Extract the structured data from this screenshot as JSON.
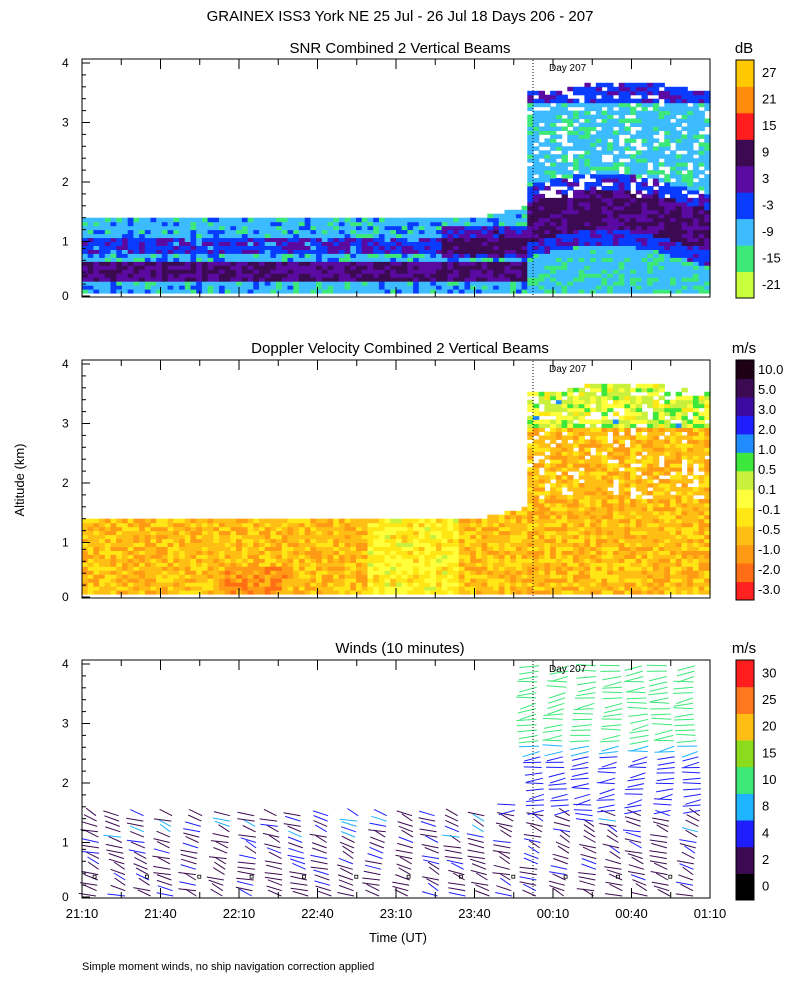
{
  "page_title": "GRAINEX ISS3 York NE  25 Jul - 26 Jul 18 Days 206 - 207",
  "ylabel": "Altitude (km)",
  "xlabel": "Time (UT)",
  "footnote": "Simple moment winds, no ship navigation correction applied",
  "day_marker": "Day 207",
  "colors": {
    "snr": [
      "#c8ff3c",
      "#3ce878",
      "#3cbcff",
      "#0a3cff",
      "#5a0aa0",
      "#3c0a50",
      "#ff1e1e",
      "#ff8c0a",
      "#ffc800"
    ],
    "vel": [
      "#ff2020",
      "#ff6e14",
      "#ff9a14",
      "#ffbe14",
      "#ffe614",
      "#ffff3c",
      "#c8f03c",
      "#3ce83c",
      "#1e8cff",
      "#1e1eff",
      "#3c0aa0",
      "#3c0a50",
      "#1e0014"
    ],
    "wind": [
      "#000000",
      "#3c0a50",
      "#1e1eff",
      "#1eb4ff",
      "#3ce878",
      "#8cdc1e",
      "#ffbe14",
      "#ff781e",
      "#ff1e1e"
    ]
  },
  "chart_data": [
    {
      "type": "heatmap",
      "title": "SNR Combined 2 Vertical Beams",
      "units": "dB",
      "x_range_hours_from_2110": [
        0,
        4
      ],
      "ylim": [
        0,
        4
      ],
      "yticks": [
        "0",
        "1",
        "2",
        "3",
        "4"
      ],
      "colorbar_labels": [
        "27",
        "21",
        "15",
        "9",
        "3",
        "-3",
        "-9",
        "-15",
        "-21"
      ],
      "coverage": {
        "day206_top_km": 1.4,
        "day207_top_km": 3.6,
        "day207_start_hour": 2.83
      }
    },
    {
      "type": "heatmap",
      "title": "Doppler Velocity Combined 2 Vertical Beams",
      "units": "m/s",
      "x_range_hours_from_2110": [
        0,
        4
      ],
      "ylim": [
        0,
        4
      ],
      "yticks": [
        "0",
        "1",
        "2",
        "3",
        "4"
      ],
      "colorbar_labels": [
        "10.0",
        "5.0",
        "3.0",
        "2.0",
        "1.0",
        "0.5",
        "0.1",
        "-0.1",
        "-0.5",
        "-1.0",
        "-2.0",
        "-3.0"
      ]
    },
    {
      "type": "scatter",
      "title": "Winds (10 minutes)",
      "units": "m/s",
      "x_range_hours_from_2110": [
        0,
        4
      ],
      "ylim": [
        0,
        4
      ],
      "yticks": [
        "0",
        "1",
        "2",
        "3",
        "4"
      ],
      "xticks": [
        "21:10",
        "21:40",
        "22:10",
        "22:40",
        "23:10",
        "23:40",
        "00:10",
        "00:40",
        "01:10"
      ],
      "colorbar_labels": [
        "30",
        "25",
        "20",
        "15",
        "10",
        "8",
        "4",
        "2",
        "0"
      ],
      "profile_count": 24
    }
  ]
}
